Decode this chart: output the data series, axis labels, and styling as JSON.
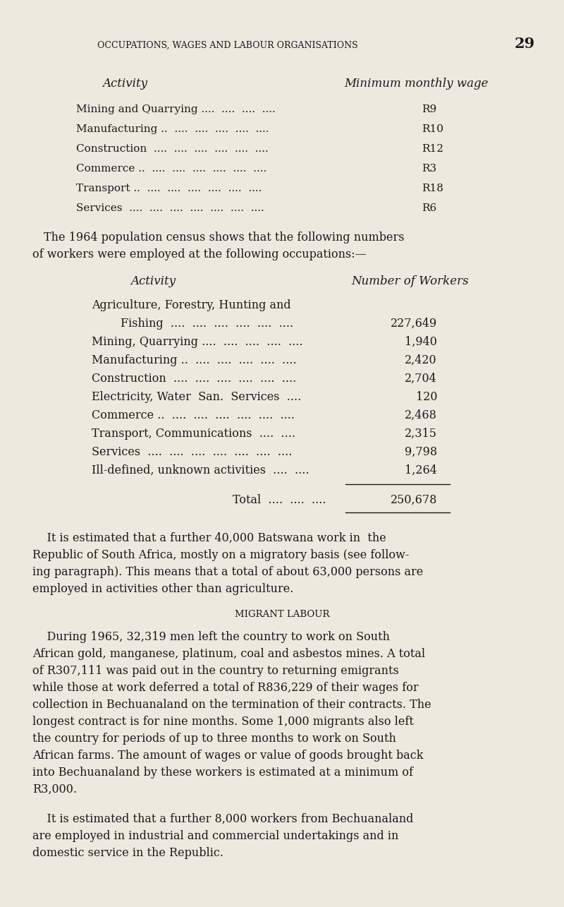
{
  "bg_color": "#ede9df",
  "text_color": "#1a1a1a",
  "page_header": "OCCUPATIONS, WAGES AND LABOUR ORGANISATIONS",
  "page_number": "29",
  "section1_col1_header": "Activity",
  "section1_col2_header": "Minimum monthly wage",
  "section1_rows": [
    [
      "Mining and Quarrying ....  ....  ....  ....",
      "R9"
    ],
    [
      "Manufacturing ..  ....  ....  ....  ....  ....",
      "R10"
    ],
    [
      "Construction  ....  ....  ....  ....  ....  ....",
      "R12"
    ],
    [
      "Commerce ..  ....  ....  ....  ....  ....  ....",
      "R3"
    ],
    [
      "Transport ..  ....  ....  ....  ....  ....  ....",
      "R18"
    ],
    [
      "Services  ....  ....  ....  ....  ....  ....  ....",
      "R6"
    ]
  ],
  "para1_line1": "The 1964 population census shows that the following numbers",
  "para1_line2": "of workers were employed at the following occupations:—",
  "section2_col1_header": "Activity",
  "section2_col2_header": "Number of Workers",
  "section2_rows": [
    [
      "Agriculture, Forestry, Hunting and",
      ""
    ],
    [
      "        Fishing  ....  ....  ....  ....  ....  ....",
      "227,649"
    ],
    [
      "Mining, Quarrying ....  ....  ....  ....  ....",
      "1,940"
    ],
    [
      "Manufacturing ..  ....  ....  ....  ....  ....",
      "2,420"
    ],
    [
      "Construction  ....  ....  ....  ....  ....  ....",
      "2,704"
    ],
    [
      "Electricity, Water  San.  Services  ....",
      "120"
    ],
    [
      "Commerce ..  ....  ....  ....  ....  ....  ....",
      "2,468"
    ],
    [
      "Transport, Communications  ....  ....",
      "2,315"
    ],
    [
      "Services  ....  ....  ....  ....  ....  ....  ....",
      "9,798"
    ],
    [
      "Ill-defined, unknown activities  ....  ....",
      "1,264"
    ]
  ],
  "total_label": "Total  ....  ....  ....",
  "total_value": "250,678",
  "para2_lines": [
    "    It is estimated that a further 40,000 Batswana work in  the",
    "Republic of South Africa, mostly on a migratory basis (see follow-",
    "ing paragraph). This means that a total of about 63,000 persons are",
    "employed in activities other than agriculture."
  ],
  "section3_header": "MIGRANT LABOUR",
  "para3_lines": [
    "    During 1965, 32,319 men left the country to work on South",
    "African gold, manganese, platinum, coal and asbestos mines. A total",
    "of R307,111 was paid out in the country to returning emigrants",
    "while those at work deferred a total of R836,229 of their wages for",
    "collection in Bechuanaland on the termination of their contracts. The",
    "longest contract is for nine months. Some 1,000 migrants also left",
    "the country for periods of up to three months to work on South",
    "African farms. The amount of wages or value of goods brought back",
    "into Bechuanaland by these workers is estimated at a minimum of",
    "R3,000."
  ],
  "para4_lines": [
    "    It is estimated that a further 8,000 workers from Bechuanaland",
    "are employed in industrial and commercial undertakings and in",
    "domestic service in the Republic."
  ]
}
